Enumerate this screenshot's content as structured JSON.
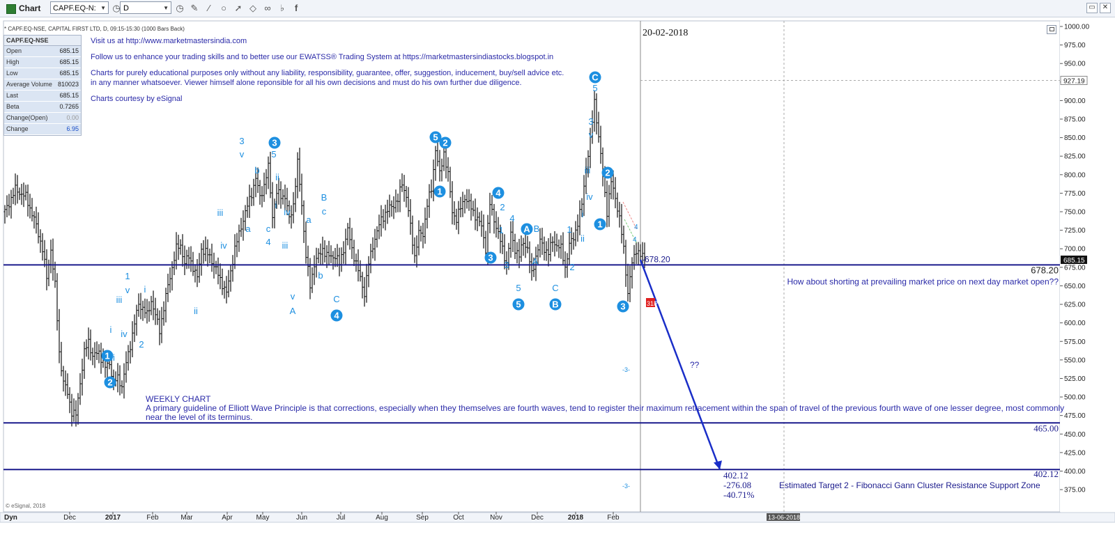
{
  "window": {
    "title": "Chart",
    "symbol": "CAPF.EQ-N:",
    "timeframe": "D"
  },
  "toolbar_icons": [
    "clock-icon",
    "clock-icon",
    "pencil-icon",
    "brush-icon",
    "circle-icon",
    "cursor-icon",
    "eraser-icon",
    "link-icon",
    "twitter-icon",
    "facebook-icon"
  ],
  "info": {
    "header": "* CAPF.EQ-NSE, CAPITAL FIRST LTD, D, 09:15-15:30 (1000 Bars Back)",
    "symbol": "CAPF.EQ-NSE",
    "rows": [
      {
        "label": "Open",
        "value": "685.15"
      },
      {
        "label": "High",
        "value": "685.15"
      },
      {
        "label": "Low",
        "value": "685.15"
      },
      {
        "label": "Average Volume",
        "value": "810023"
      },
      {
        "label": "Last",
        "value": "685.15"
      },
      {
        "label": "Beta",
        "value": "0.7265"
      },
      {
        "label": "Change(Open)",
        "value": "0.00"
      },
      {
        "label": "Change",
        "value": "6.95"
      }
    ]
  },
  "notes": {
    "line1": "Visit us at http://www.marketmastersindia.com",
    "line2": "Follow us to enhance your trading skills and to better use our EWATSS® Trading System at https://marketmastersindiastocks.blogspot.in",
    "line3a": "Charts for purely educational purposes only without any liability, responsibility, guarantee, offer, suggestion, inducement, buy/sell advice etc.",
    "line3b": "in any manner whatsoever. Viewer himself alone reponsible for all his own decisions and must do his own further due diligence.",
    "line4": "Charts courtesy by eSignal"
  },
  "date_stamp": "20-02-2018",
  "weekly": {
    "title": "WEEKLY CHART",
    "text": "A primary guideline of Elliott Wave Principle is that corrections, especially when they themselves are fourth waves, tend to register their maximum retracement within the span of travel of the previous fourth wave of one lesser degree, most commonly near the level of its terminus."
  },
  "annotations": {
    "question": "How about shorting at prevailing market price on next day market open??",
    "level_678": "678.20",
    "level_678_left": "-678.20",
    "level_465": "465.00",
    "level_402": "402.12",
    "target_value": "402.12",
    "target_diff": "-276.08",
    "target_pct": "-40.71%",
    "target_text": "Estimated Target 2 - Fibonacci Gann Cluster Resistance Support Zone",
    "qq": "??",
    "m3a": "-3-",
    "m3b": "-3-",
    "pti": "31PTI",
    "price_tag_high": "927.19",
    "price_tag_last": "685.15",
    "esignal": "© eSignal, 2018",
    "dyn": "Dyn",
    "bottom_date": "13-06-2018"
  },
  "colors": {
    "wave": "#1d8fe0",
    "level": "#1a1a8c",
    "note": "#2a2aa8",
    "bars": "#111111",
    "pti": "#e02020"
  },
  "chart_data": {
    "type": "line",
    "title": "",
    "xlabel": "",
    "ylabel": "",
    "ylim": [
      345,
      1000
    ],
    "y_ticks": [
      "1000.00",
      "975.00",
      "950.00",
      "925.00",
      "900.00",
      "875.00",
      "850.00",
      "825.00",
      "800.00",
      "775.00",
      "750.00",
      "725.00",
      "700.00",
      "675.00",
      "650.00",
      "625.00",
      "600.00",
      "575.00",
      "550.00",
      "525.00",
      "500.00",
      "475.00",
      "450.00",
      "425.00",
      "400.00",
      "375.00"
    ],
    "x_ticks": [
      "Dec",
      "2017",
      "Feb",
      "Mar",
      "Apr",
      "May",
      "Jun",
      "Jul",
      "Aug",
      "Sep",
      "Oct",
      "Nov",
      "Dec",
      "2018",
      "Feb"
    ],
    "price_path": [
      [
        0,
        750
      ],
      [
        5,
        780
      ],
      [
        10,
        770
      ],
      [
        14,
        740
      ],
      [
        18,
        700
      ],
      [
        20,
        660
      ],
      [
        22,
        700
      ],
      [
        24,
        650
      ],
      [
        26,
        560
      ],
      [
        28,
        520
      ],
      [
        30,
        505
      ],
      [
        32,
        480
      ],
      [
        34,
        475
      ],
      [
        36,
        520
      ],
      [
        38,
        560
      ],
      [
        40,
        575
      ],
      [
        42,
        555
      ],
      [
        45,
        560
      ],
      [
        48,
        540
      ],
      [
        50,
        545
      ],
      [
        52,
        520
      ],
      [
        54,
        525
      ],
      [
        56,
        515
      ],
      [
        58,
        545
      ],
      [
        60,
        570
      ],
      [
        62,
        600
      ],
      [
        64,
        625
      ],
      [
        66,
        620
      ],
      [
        68,
        610
      ],
      [
        70,
        630
      ],
      [
        72,
        610
      ],
      [
        74,
        590
      ],
      [
        76,
        620
      ],
      [
        78,
        650
      ],
      [
        82,
        700
      ],
      [
        84,
        705
      ],
      [
        86,
        680
      ],
      [
        88,
        690
      ],
      [
        92,
        660
      ],
      [
        94,
        700
      ],
      [
        98,
        690
      ],
      [
        102,
        665
      ],
      [
        106,
        640
      ],
      [
        108,
        670
      ],
      [
        110,
        700
      ],
      [
        114,
        740
      ],
      [
        118,
        775
      ],
      [
        120,
        795
      ],
      [
        122,
        770
      ],
      [
        124,
        785
      ],
      [
        126,
        810
      ],
      [
        128,
        745
      ],
      [
        130,
        775
      ],
      [
        134,
        770
      ],
      [
        136,
        740
      ],
      [
        138,
        760
      ],
      [
        140,
        815
      ],
      [
        142,
        760
      ],
      [
        144,
        690
      ],
      [
        146,
        650
      ],
      [
        148,
        680
      ],
      [
        150,
        690
      ],
      [
        152,
        700
      ],
      [
        154,
        690
      ],
      [
        158,
        690
      ],
      [
        160,
        680
      ],
      [
        162,
        700
      ],
      [
        164,
        725
      ],
      [
        166,
        700
      ],
      [
        168,
        680
      ],
      [
        172,
        640
      ],
      [
        174,
        680
      ],
      [
        176,
        705
      ],
      [
        180,
        740
      ],
      [
        184,
        755
      ],
      [
        188,
        765
      ],
      [
        190,
        790
      ],
      [
        192,
        770
      ],
      [
        194,
        730
      ],
      [
        196,
        690
      ],
      [
        198,
        720
      ],
      [
        200,
        720
      ],
      [
        202,
        760
      ],
      [
        204,
        780
      ],
      [
        206,
        835
      ],
      [
        208,
        800
      ],
      [
        210,
        830
      ],
      [
        212,
        800
      ],
      [
        214,
        750
      ],
      [
        216,
        740
      ],
      [
        220,
        770
      ],
      [
        224,
        750
      ],
      [
        228,
        730
      ],
      [
        230,
        700
      ],
      [
        232,
        760
      ],
      [
        234,
        740
      ],
      [
        236,
        720
      ],
      [
        238,
        700
      ],
      [
        240,
        680
      ],
      [
        242,
        720
      ],
      [
        244,
        700
      ],
      [
        246,
        690
      ],
      [
        248,
        710
      ],
      [
        250,
        700
      ],
      [
        252,
        665
      ],
      [
        254,
        690
      ],
      [
        256,
        710
      ],
      [
        258,
        700
      ],
      [
        260,
        695
      ],
      [
        262,
        710
      ],
      [
        264,
        705
      ],
      [
        266,
        700
      ],
      [
        268,
        675
      ],
      [
        270,
        705
      ],
      [
        272,
        715
      ],
      [
        274,
        735
      ],
      [
        276,
        760
      ],
      [
        278,
        810
      ],
      [
        280,
        845
      ],
      [
        282,
        900
      ],
      [
        284,
        850
      ],
      [
        286,
        800
      ],
      [
        288,
        750
      ],
      [
        290,
        790
      ],
      [
        292,
        770
      ],
      [
        294,
        740
      ],
      [
        296,
        700
      ],
      [
        298,
        640
      ],
      [
        300,
        680
      ],
      [
        302,
        700
      ],
      [
        304,
        690
      ],
      [
        306,
        690
      ]
    ],
    "series": [
      {
        "values": [
          678.2,
          678.2
        ]
      },
      {
        "values": [
          465.0,
          465.0
        ]
      },
      {
        "values": [
          402.12,
          402.12
        ]
      }
    ],
    "projection": {
      "from": 685.15,
      "to": 402.12
    },
    "wave_labels": [
      {
        "t": "3",
        "x": 347,
        "y": 207
      },
      {
        "t": "v",
        "x": 347,
        "y": 226
      },
      {
        "t": "b",
        "x": 369,
        "y": 249
      },
      {
        "t": "iii",
        "x": 316,
        "y": 310
      },
      {
        "t": "iv",
        "x": 321,
        "y": 357
      },
      {
        "t": "a",
        "x": 356,
        "y": 333
      },
      {
        "t": "c",
        "x": 385,
        "y": 333
      },
      {
        "t": "4",
        "x": 385,
        "y": 352
      },
      {
        "t": "5",
        "x": 393,
        "y": 226
      },
      {
        "t": "ii",
        "x": 398,
        "y": 259
      },
      {
        "t": "i",
        "x": 396,
        "y": 299
      },
      {
        "t": "iv",
        "x": 412,
        "y": 309
      },
      {
        "t": "iii",
        "x": 409,
        "y": 357
      },
      {
        "t": "v",
        "x": 420,
        "y": 430
      },
      {
        "t": "A",
        "x": 420,
        "y": 451
      },
      {
        "t": "a",
        "x": 443,
        "y": 320
      },
      {
        "t": "b",
        "x": 460,
        "y": 400
      },
      {
        "t": "B",
        "x": 465,
        "y": 288
      },
      {
        "t": "c",
        "x": 465,
        "y": 308
      },
      {
        "t": "C",
        "x": 483,
        "y": 434
      },
      {
        "t": "1",
        "x": 183,
        "y": 401
      },
      {
        "t": "v",
        "x": 183,
        "y": 421
      },
      {
        "t": "iii",
        "x": 171,
        "y": 435
      },
      {
        "t": "i",
        "x": 159,
        "y": 478
      },
      {
        "t": "iv",
        "x": 178,
        "y": 484
      },
      {
        "t": "2",
        "x": 203,
        "y": 499
      },
      {
        "t": "ii",
        "x": 162,
        "y": 518
      },
      {
        "t": "i",
        "x": 208,
        "y": 420
      },
      {
        "t": "ii",
        "x": 281,
        "y": 451
      },
      {
        "t": "2",
        "x": 721,
        "y": 302
      },
      {
        "t": "4",
        "x": 735,
        "y": 318
      },
      {
        "t": "1",
        "x": 719,
        "y": 335
      },
      {
        "t": "3",
        "x": 727,
        "y": 385
      },
      {
        "t": "5",
        "x": 744,
        "y": 418
      },
      {
        "t": "B",
        "x": 770,
        "y": 333
      },
      {
        "t": "A",
        "x": 768,
        "y": 380
      },
      {
        "t": "C",
        "x": 797,
        "y": 418
      },
      {
        "t": "1",
        "x": 817,
        "y": 334
      },
      {
        "t": "2",
        "x": 821,
        "y": 388
      },
      {
        "t": "i",
        "x": 836,
        "y": 312
      },
      {
        "t": "ii",
        "x": 836,
        "y": 347
      },
      {
        "t": "iii",
        "x": 843,
        "y": 249
      },
      {
        "t": "iv",
        "x": 846,
        "y": 287
      },
      {
        "t": "v",
        "x": 848,
        "y": 198
      },
      {
        "t": "3",
        "x": 848,
        "y": 179
      },
      {
        "t": "5",
        "x": 854,
        "y": 131
      }
    ],
    "wave_circles": [
      {
        "t": "3",
        "x": 394,
        "y": 205
      },
      {
        "t": "4",
        "x": 483,
        "y": 453
      },
      {
        "t": "5",
        "x": 625,
        "y": 197
      },
      {
        "t": "2",
        "x": 639,
        "y": 205
      },
      {
        "t": "1",
        "x": 631,
        "y": 275
      },
      {
        "t": "4",
        "x": 715,
        "y": 277
      },
      {
        "t": "3",
        "x": 704,
        "y": 370
      },
      {
        "t": "5",
        "x": 744,
        "y": 437
      },
      {
        "t": "A",
        "x": 756,
        "y": 329
      },
      {
        "t": "B",
        "x": 797,
        "y": 437
      },
      {
        "t": "C",
        "x": 854,
        "y": 111
      },
      {
        "t": "2",
        "x": 872,
        "y": 248
      },
      {
        "t": "1",
        "x": 861,
        "y": 322
      },
      {
        "t": "3",
        "x": 894,
        "y": 440
      },
      {
        "t": "1",
        "x": 154,
        "y": 511
      },
      {
        "t": "2",
        "x": 158,
        "y": 549
      }
    ]
  }
}
